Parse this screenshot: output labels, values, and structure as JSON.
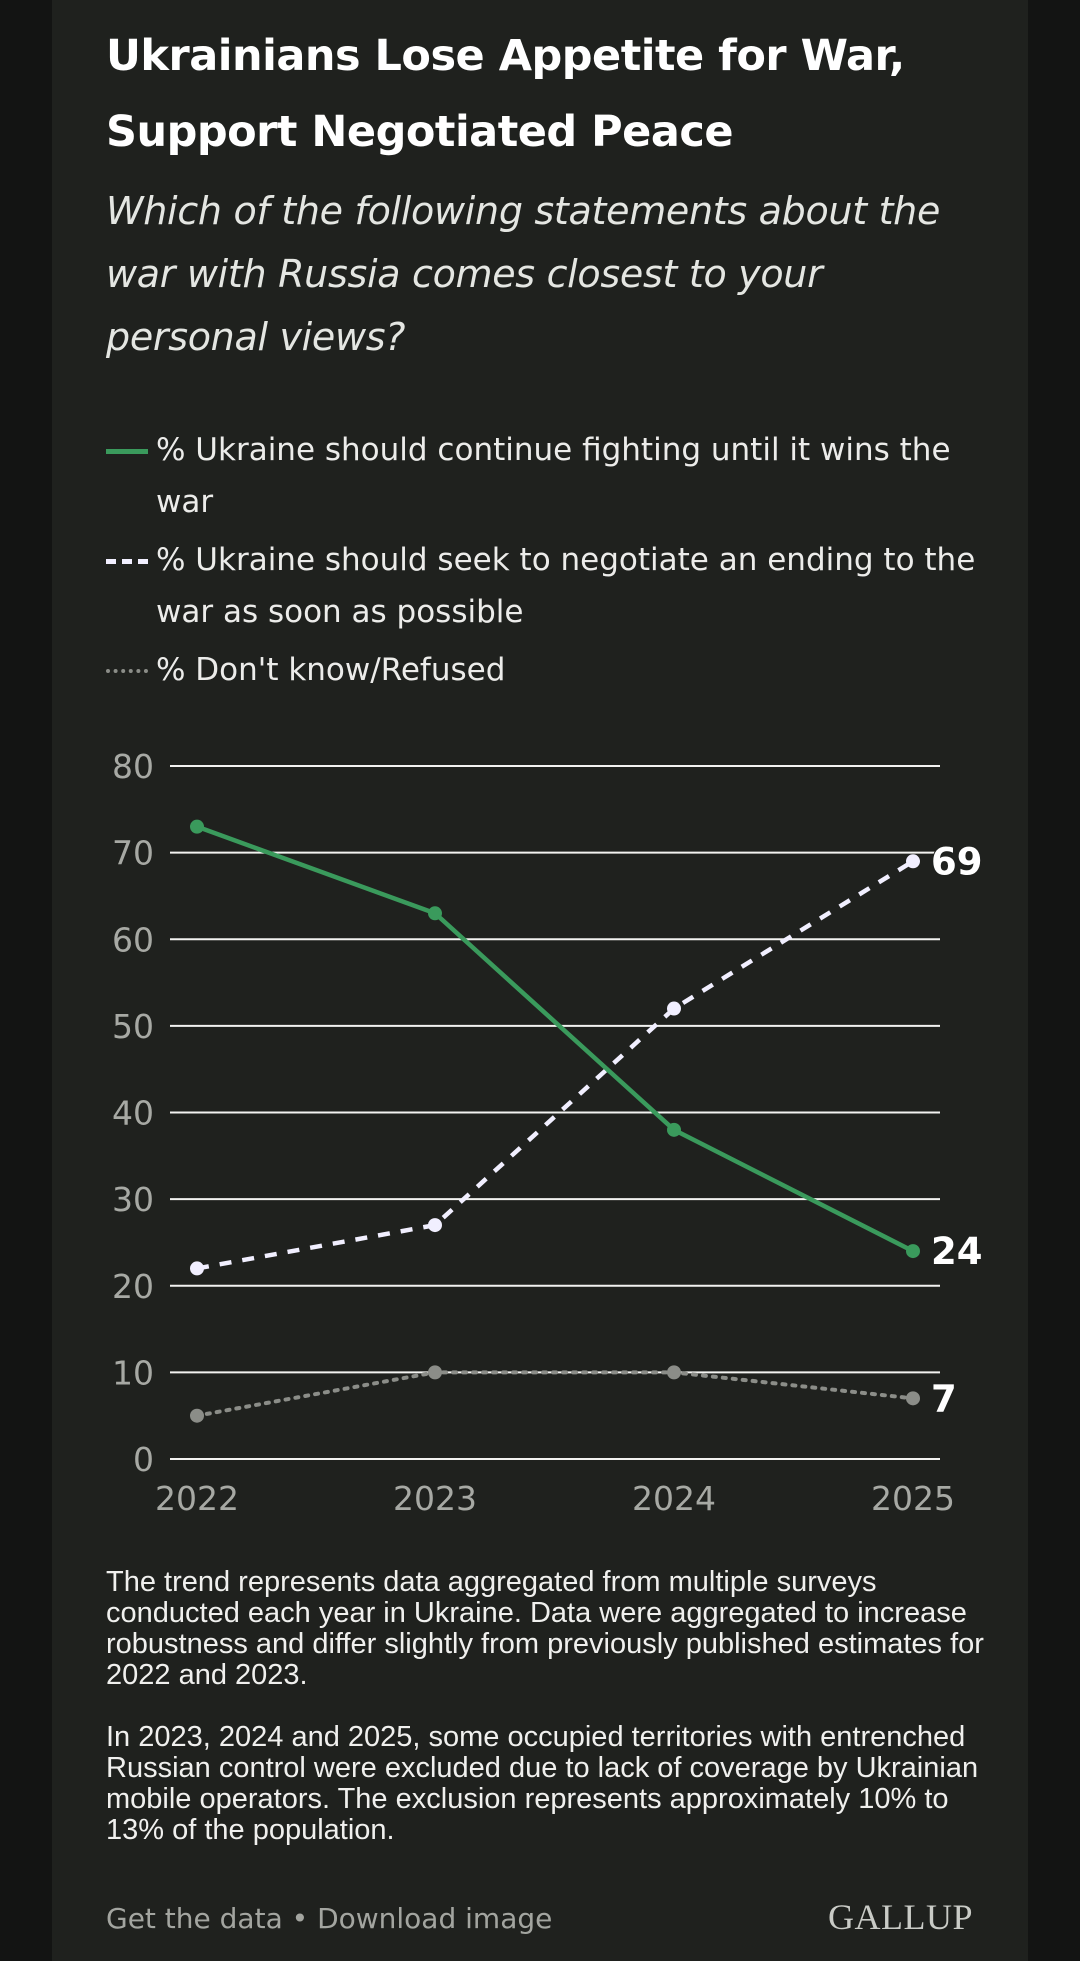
{
  "header": {
    "title": "Ukrainians Lose Appetite for War, Support Negotiated Peace",
    "subtitle": "Which of the following statements about the war with Russia comes closest to your personal views?"
  },
  "legend": {
    "items": [
      {
        "label": "% Ukraine should continue fighting until it wins the war",
        "style": "solid",
        "color": "#3a9a5c"
      },
      {
        "label": "% Ukraine should seek to negotiate an ending to the war as soon as possible",
        "style": "dashed",
        "color": "#f1efff"
      },
      {
        "label": "% Don't know/Refused",
        "style": "dotted",
        "color": "#8b8d88"
      }
    ]
  },
  "chart_data": {
    "type": "line",
    "x": [
      "2022",
      "2023",
      "2024",
      "2025"
    ],
    "ylim": [
      0,
      80
    ],
    "yticks": [
      0,
      10,
      20,
      30,
      40,
      50,
      60,
      70,
      80
    ],
    "grid": true,
    "legend_position": "top",
    "series": [
      {
        "name": "% Ukraine should continue fighting until it wins the war",
        "values": [
          73,
          63,
          38,
          24
        ],
        "color": "#3a9a5c",
        "style": "solid",
        "end_label": "24"
      },
      {
        "name": "% Ukraine should seek to negotiate an ending to the war as soon as possible",
        "values": [
          22,
          27,
          52,
          69
        ],
        "color": "#f1efff",
        "style": "dashed",
        "end_label": "69"
      },
      {
        "name": "% Don't know/Refused",
        "values": [
          5,
          10,
          10,
          7
        ],
        "color": "#8b8d88",
        "style": "dotted",
        "end_label": "7"
      }
    ]
  },
  "notes": [
    "The trend represents data aggregated from multiple surveys conducted each year in Ukraine. Data were aggregated to increase robustness and differ slightly from previously published estimates for 2022 and 2023.",
    "In 2023, 2024 and 2025, some occupied territories with entrenched Russian control were excluded due to lack of coverage by Ukrainian mobile operators. The exclusion represents approximately 10% to 13% of the population."
  ],
  "footer": {
    "get_data": "Get the data",
    "separator": "•",
    "download": "Download image",
    "brand": "GALLUP"
  },
  "colors": {
    "background": "#1f211e",
    "fighting": "#3a9a5c",
    "negotiate": "#f1efff",
    "dont_know": "#8b8d88"
  }
}
